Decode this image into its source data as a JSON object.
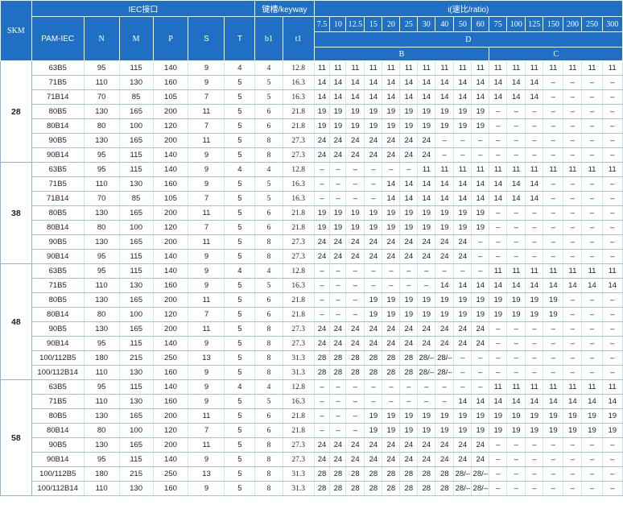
{
  "header": {
    "skm_label": "SKM",
    "iec_label": "IEC接口",
    "keyway_label": "键槽/keyway",
    "ratio_label": "i(速比/ratio)",
    "columns": [
      "PAM-IEC",
      "N",
      "M",
      "P",
      "S",
      "T",
      "b1",
      "t1"
    ],
    "ratios": [
      "7.5",
      "10",
      "12.5",
      "15",
      "20",
      "25",
      "30",
      "40",
      "50",
      "60",
      "75",
      "100",
      "125",
      "150",
      "200",
      "250",
      "300"
    ],
    "row3_label": "D",
    "row4_labels": [
      "B",
      "C"
    ]
  },
  "groups": [
    {
      "skm": "28",
      "rows": [
        [
          "63B5",
          "95",
          "115",
          "140",
          "9",
          "4",
          "4",
          "12.8",
          "11",
          "11",
          "11",
          "11",
          "11",
          "11",
          "11",
          "11",
          "11",
          "11",
          "11",
          "11",
          "11",
          "11",
          "11",
          "11",
          "11"
        ],
        [
          "71B5",
          "110",
          "130",
          "160",
          "9",
          "5",
          "5",
          "16.3",
          "14",
          "14",
          "14",
          "14",
          "14",
          "14",
          "14",
          "14",
          "14",
          "14",
          "14",
          "14",
          "14",
          "–",
          "–",
          "–",
          "–"
        ],
        [
          "71B14",
          "70",
          "85",
          "105",
          "7",
          "5",
          "5",
          "16.3",
          "14",
          "14",
          "14",
          "14",
          "14",
          "14",
          "14",
          "14",
          "14",
          "14",
          "14",
          "14",
          "14",
          "–",
          "–",
          "–",
          "–"
        ],
        [
          "80B5",
          "130",
          "165",
          "200",
          "11",
          "5",
          "6",
          "21.8",
          "19",
          "19",
          "19",
          "19",
          "19",
          "19",
          "19",
          "19",
          "19",
          "19",
          "–",
          "–",
          "–",
          "–",
          "–",
          "–",
          "–"
        ],
        [
          "80B14",
          "80",
          "100",
          "120",
          "7",
          "5",
          "6",
          "21.8",
          "19",
          "19",
          "19",
          "19",
          "19",
          "19",
          "19",
          "19",
          "19",
          "19",
          "–",
          "–",
          "–",
          "–",
          "–",
          "–",
          "–"
        ],
        [
          "90B5",
          "130",
          "165",
          "200",
          "11",
          "5",
          "8",
          "27.3",
          "24",
          "24",
          "24",
          "24",
          "24",
          "24",
          "24",
          "–",
          "–",
          "–",
          "–",
          "–",
          "–",
          "–",
          "–",
          "–",
          "–"
        ],
        [
          "90B14",
          "95",
          "115",
          "140",
          "9",
          "5",
          "8",
          "27.3",
          "24",
          "24",
          "24",
          "24",
          "24",
          "24",
          "24",
          "–",
          "–",
          "–",
          "–",
          "–",
          "–",
          "–",
          "–",
          "–",
          "–"
        ]
      ]
    },
    {
      "skm": "38",
      "rows": [
        [
          "63B5",
          "95",
          "115",
          "140",
          "9",
          "4",
          "4",
          "12.8",
          "–",
          "–",
          "–",
          "–",
          "–",
          "–",
          "11",
          "11",
          "11",
          "11",
          "11",
          "11",
          "11",
          "11",
          "11",
          "11",
          "11"
        ],
        [
          "71B5",
          "110",
          "130",
          "160",
          "9",
          "5",
          "5",
          "16.3",
          "–",
          "–",
          "–",
          "–",
          "14",
          "14",
          "14",
          "14",
          "14",
          "14",
          "14",
          "14",
          "14",
          "–",
          "–",
          "–",
          "–"
        ],
        [
          "71B14",
          "70",
          "85",
          "105",
          "7",
          "5",
          "5",
          "16.3",
          "–",
          "–",
          "–",
          "–",
          "14",
          "14",
          "14",
          "14",
          "14",
          "14",
          "14",
          "14",
          "14",
          "–",
          "–",
          "–",
          "–"
        ],
        [
          "80B5",
          "130",
          "165",
          "200",
          "11",
          "5",
          "6",
          "21.8",
          "19",
          "19",
          "19",
          "19",
          "19",
          "19",
          "19",
          "19",
          "19",
          "19",
          "–",
          "–",
          "–",
          "–",
          "–",
          "–",
          "–"
        ],
        [
          "80B14",
          "80",
          "100",
          "120",
          "7",
          "5",
          "6",
          "21.8",
          "19",
          "19",
          "19",
          "19",
          "19",
          "19",
          "19",
          "19",
          "19",
          "19",
          "–",
          "–",
          "–",
          "–",
          "–",
          "–",
          "–"
        ],
        [
          "90B5",
          "130",
          "165",
          "200",
          "11",
          "5",
          "8",
          "27.3",
          "24",
          "24",
          "24",
          "24",
          "24",
          "24",
          "24",
          "24",
          "24",
          "–",
          "–",
          "–",
          "–",
          "–",
          "–",
          "–",
          "–"
        ],
        [
          "90B14",
          "95",
          "115",
          "140",
          "9",
          "5",
          "8",
          "27.3",
          "24",
          "24",
          "24",
          "24",
          "24",
          "24",
          "24",
          "24",
          "24",
          "–",
          "–",
          "–",
          "–",
          "–",
          "–",
          "–",
          "–"
        ]
      ]
    },
    {
      "skm": "48",
      "rows": [
        [
          "63B5",
          "95",
          "115",
          "140",
          "9",
          "4",
          "4",
          "12.8",
          "–",
          "–",
          "–",
          "–",
          "–",
          "–",
          "–",
          "–",
          "–",
          "–",
          "11",
          "11",
          "11",
          "11",
          "11",
          "11",
          "11"
        ],
        [
          "71B5",
          "110",
          "130",
          "160",
          "9",
          "5",
          "5",
          "16.3",
          "–",
          "–",
          "–",
          "–",
          "–",
          "–",
          "–",
          "14",
          "14",
          "14",
          "14",
          "14",
          "14",
          "14",
          "14",
          "14",
          "14"
        ],
        [
          "80B5",
          "130",
          "165",
          "200",
          "11",
          "5",
          "6",
          "21.8",
          "–",
          "–",
          "–",
          "19",
          "19",
          "19",
          "19",
          "19",
          "19",
          "19",
          "19",
          "19",
          "19",
          "19",
          "–",
          "–",
          "–"
        ],
        [
          "80B14",
          "80",
          "100",
          "120",
          "7",
          "5",
          "6",
          "21.8",
          "–",
          "–",
          "–",
          "19",
          "19",
          "19",
          "19",
          "19",
          "19",
          "19",
          "19",
          "19",
          "19",
          "19",
          "–",
          "–",
          "–"
        ],
        [
          "90B5",
          "130",
          "165",
          "200",
          "11",
          "5",
          "8",
          "27.3",
          "24",
          "24",
          "24",
          "24",
          "24",
          "24",
          "24",
          "24",
          "24",
          "24",
          "–",
          "–",
          "–",
          "–",
          "–",
          "–",
          "–"
        ],
        [
          "90B14",
          "95",
          "115",
          "140",
          "9",
          "5",
          "8",
          "27.3",
          "24",
          "24",
          "24",
          "24",
          "24",
          "24",
          "24",
          "24",
          "24",
          "24",
          "–",
          "–",
          "–",
          "–",
          "–",
          "–",
          "–"
        ],
        [
          "100/112B5",
          "180",
          "215",
          "250",
          "13",
          "5",
          "8",
          "31.3",
          "28",
          "28",
          "28",
          "28",
          "28",
          "28",
          "28/–",
          "28/–",
          "–",
          "–",
          "–",
          "–",
          "–",
          "–",
          "–",
          "–",
          "–"
        ],
        [
          "100/112B14",
          "110",
          "130",
          "160",
          "9",
          "5",
          "8",
          "31.3",
          "28",
          "28",
          "28",
          "28",
          "28",
          "28",
          "28/–",
          "28/–",
          "–",
          "–",
          "–",
          "–",
          "–",
          "–",
          "–",
          "–",
          "–"
        ]
      ]
    },
    {
      "skm": "58",
      "rows": [
        [
          "63B5",
          "95",
          "115",
          "140",
          "9",
          "4",
          "4",
          "12.8",
          "–",
          "–",
          "–",
          "–",
          "–",
          "–",
          "–",
          "–",
          "–",
          "–",
          "11",
          "11",
          "11",
          "11",
          "11",
          "11",
          "11"
        ],
        [
          "71B5",
          "110",
          "130",
          "160",
          "9",
          "5",
          "5",
          "16.3",
          "–",
          "–",
          "–",
          "–",
          "–",
          "–",
          "–",
          "–",
          "14",
          "14",
          "14",
          "14",
          "14",
          "14",
          "14",
          "14",
          "14"
        ],
        [
          "80B5",
          "130",
          "165",
          "200",
          "11",
          "5",
          "6",
          "21.8",
          "–",
          "–",
          "–",
          "19",
          "19",
          "19",
          "19",
          "19",
          "19",
          "19",
          "19",
          "19",
          "19",
          "19",
          "19",
          "19",
          "19"
        ],
        [
          "80B14",
          "80",
          "100",
          "120",
          "7",
          "5",
          "6",
          "21.8",
          "–",
          "–",
          "–",
          "19",
          "19",
          "19",
          "19",
          "19",
          "19",
          "19",
          "19",
          "19",
          "19",
          "19",
          "19",
          "19",
          "19"
        ],
        [
          "90B5",
          "130",
          "165",
          "200",
          "11",
          "5",
          "8",
          "27.3",
          "24",
          "24",
          "24",
          "24",
          "24",
          "24",
          "24",
          "24",
          "24",
          "24",
          "–",
          "–",
          "–",
          "–",
          "–",
          "–",
          "–"
        ],
        [
          "90B14",
          "95",
          "115",
          "140",
          "9",
          "5",
          "8",
          "27.3",
          "24",
          "24",
          "24",
          "24",
          "24",
          "24",
          "24",
          "24",
          "24",
          "24",
          "–",
          "–",
          "–",
          "–",
          "–",
          "–",
          "–"
        ],
        [
          "100/112B5",
          "180",
          "215",
          "250",
          "13",
          "5",
          "8",
          "31.3",
          "28",
          "28",
          "28",
          "28",
          "28",
          "28",
          "28",
          "28",
          "28/–",
          "28/–",
          "–",
          "–",
          "–",
          "–",
          "–",
          "–",
          "–"
        ],
        [
          "100/112B14",
          "110",
          "130",
          "160",
          "9",
          "5",
          "8",
          "31.3",
          "28",
          "28",
          "28",
          "28",
          "28",
          "28",
          "28",
          "28",
          "28/–",
          "28/–",
          "–",
          "–",
          "–",
          "–",
          "–",
          "–",
          "–"
        ]
      ]
    }
  ],
  "colors": {
    "header_bg": "#1f6fc5",
    "header_text": "#ffffff",
    "row_border": "#9ec3e6"
  }
}
